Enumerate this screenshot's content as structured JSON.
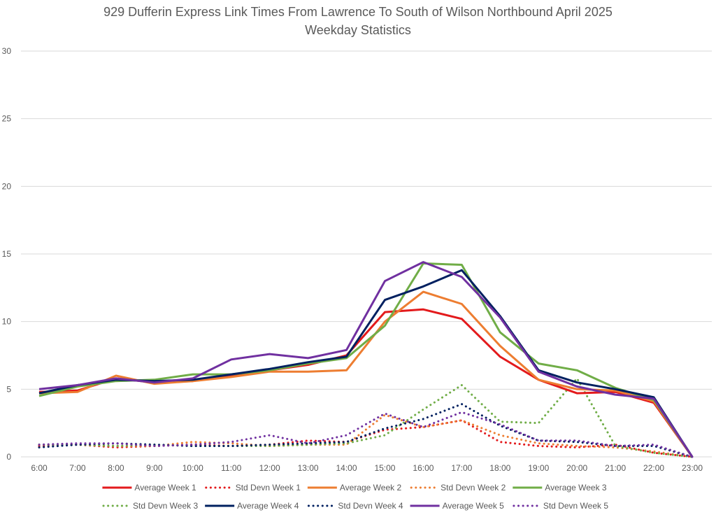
{
  "chart_data": {
    "type": "line",
    "title": "929 Dufferin Express Link Times From Lawrence To South of Wilson Northbound April 2025",
    "subtitle": "Weekday Statistics",
    "xlabel": "",
    "ylabel": "",
    "ylim": [
      0,
      30
    ],
    "yticks": [
      0,
      5,
      10,
      15,
      20,
      25,
      30
    ],
    "grid": true,
    "legend_position": "bottom",
    "categories": [
      "6:00",
      "7:00",
      "8:00",
      "9:00",
      "10:00",
      "11:00",
      "12:00",
      "13:00",
      "14:00",
      "15:00",
      "16:00",
      "17:00",
      "18:00",
      "19:00",
      "20:00",
      "21:00",
      "22:00",
      "23:00"
    ],
    "series": [
      {
        "name": "Average Week 1",
        "style": "solid",
        "color": "#e31a1c",
        "values": [
          4.8,
          4.9,
          5.8,
          5.5,
          5.6,
          6.0,
          6.4,
          6.8,
          7.5,
          10.7,
          10.9,
          10.2,
          7.4,
          5.7,
          4.7,
          4.8,
          4.0,
          0.0
        ]
      },
      {
        "name": "Std Devn Week 1",
        "style": "dotted",
        "color": "#e31a1c",
        "values": [
          0.8,
          0.9,
          0.7,
          0.8,
          0.9,
          0.8,
          0.9,
          1.2,
          1.1,
          2.0,
          2.2,
          2.7,
          1.1,
          0.8,
          0.7,
          0.9,
          0.3,
          0.0
        ]
      },
      {
        "name": "Average Week 2",
        "style": "solid",
        "color": "#ed7d31",
        "values": [
          4.7,
          4.8,
          6.0,
          5.4,
          5.6,
          5.9,
          6.3,
          6.3,
          6.4,
          10.0,
          12.2,
          11.3,
          8.2,
          5.7,
          5.0,
          4.9,
          4.1,
          0.0
        ]
      },
      {
        "name": "Std Devn Week 2",
        "style": "dotted",
        "color": "#ed7d31",
        "values": [
          0.9,
          0.9,
          0.8,
          0.8,
          1.1,
          1.0,
          0.8,
          0.9,
          0.9,
          3.1,
          2.2,
          2.7,
          1.6,
          1.0,
          0.8,
          0.7,
          0.4,
          0.0
        ]
      },
      {
        "name": "Average Week 3",
        "style": "solid",
        "color": "#70ad47",
        "values": [
          4.5,
          5.2,
          5.6,
          5.7,
          6.1,
          6.1,
          6.4,
          6.9,
          7.3,
          9.7,
          14.3,
          14.2,
          9.2,
          6.9,
          6.4,
          5.1,
          4.2,
          0.0
        ]
      },
      {
        "name": "Std Devn Week 3",
        "style": "dotted",
        "color": "#70ad47",
        "values": [
          0.9,
          0.9,
          0.8,
          0.9,
          0.8,
          0.8,
          0.8,
          0.9,
          1.0,
          1.6,
          3.5,
          5.3,
          2.6,
          2.5,
          5.8,
          0.8,
          0.3,
          0.0
        ]
      },
      {
        "name": "Average Week 4",
        "style": "solid",
        "color": "#002060",
        "values": [
          4.7,
          5.3,
          5.7,
          5.6,
          5.7,
          6.1,
          6.5,
          7.0,
          7.4,
          11.6,
          12.6,
          13.8,
          10.4,
          6.4,
          5.5,
          5.0,
          4.4,
          0.0
        ]
      },
      {
        "name": "Std Devn Week 4",
        "style": "dotted",
        "color": "#002060",
        "values": [
          0.7,
          0.9,
          1.0,
          0.9,
          0.8,
          0.8,
          0.9,
          1.0,
          1.1,
          2.1,
          2.8,
          3.9,
          2.3,
          1.2,
          1.1,
          0.8,
          0.8,
          0.0
        ]
      },
      {
        "name": "Average Week 5",
        "style": "solid",
        "color": "#7030a0",
        "values": [
          5.0,
          5.3,
          5.8,
          5.5,
          5.8,
          7.2,
          7.6,
          7.3,
          7.9,
          13.0,
          14.4,
          13.3,
          10.3,
          6.3,
          5.2,
          4.6,
          4.3,
          0.0
        ]
      },
      {
        "name": "Std Devn Week 5",
        "style": "dotted",
        "color": "#7030a0",
        "values": [
          0.9,
          1.0,
          1.0,
          0.8,
          0.9,
          1.1,
          1.6,
          1.0,
          1.6,
          3.2,
          2.2,
          3.3,
          2.4,
          1.2,
          1.2,
          0.8,
          0.9,
          0.0
        ]
      }
    ]
  }
}
